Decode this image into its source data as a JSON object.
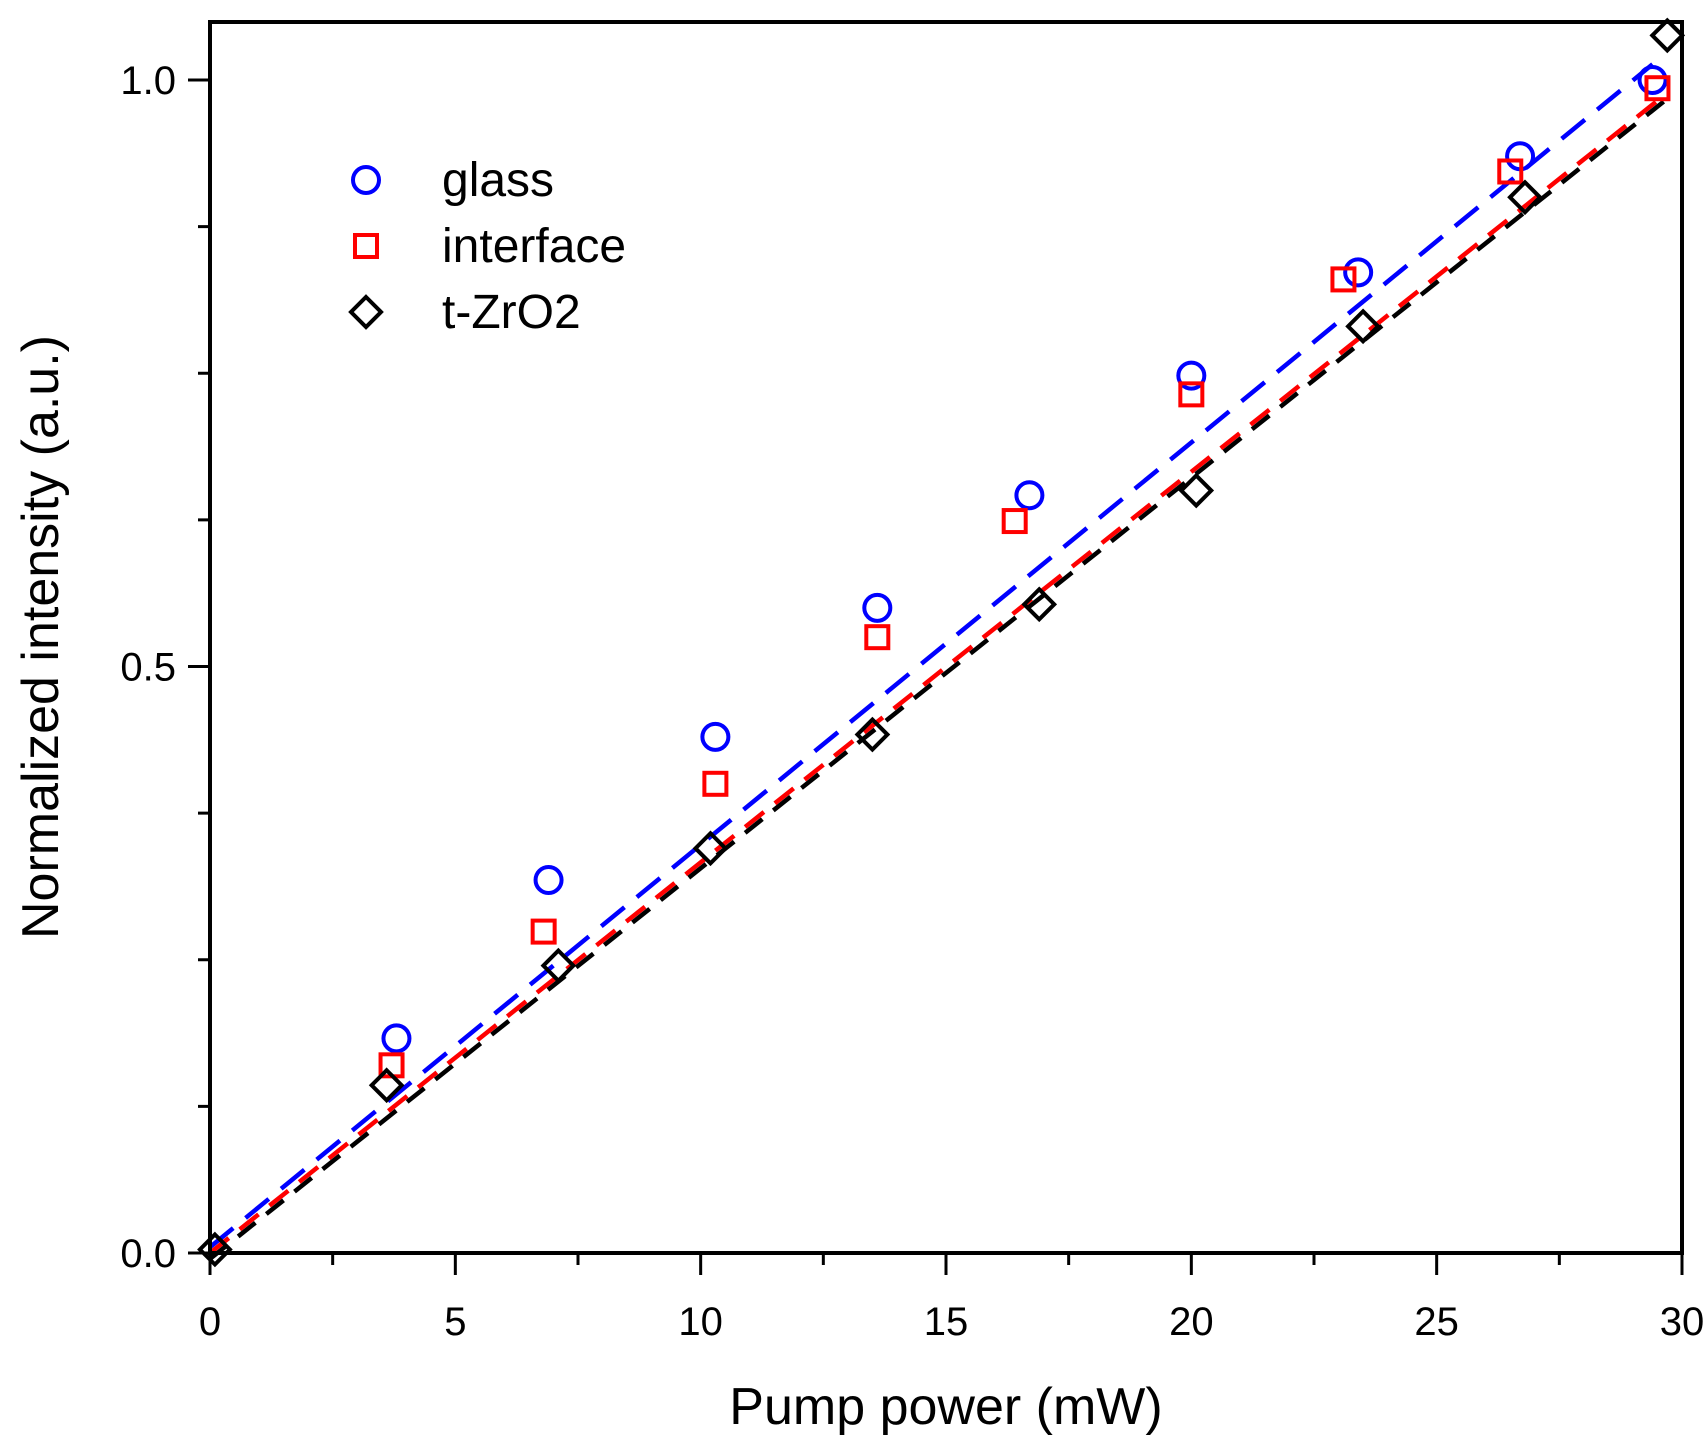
{
  "chart_data": {
    "type": "scatter",
    "title": "",
    "xlabel": "Pump power (mW)",
    "ylabel": "Normalized intensity (a.u.)",
    "xlim": [
      0,
      30
    ],
    "ylim": [
      0,
      1.05
    ],
    "x_ticks": [
      "0",
      "5",
      "10",
      "15",
      "20",
      "25",
      "30"
    ],
    "y_ticks": [
      "0.0",
      "0.5",
      "1.0"
    ],
    "grid": false,
    "legend_position": "top-left",
    "series": [
      {
        "name": "glass",
        "marker": "circle",
        "color": "#0000ff",
        "fit_slope": 0.0343,
        "fit_intercept": 0.005,
        "points": [
          {
            "x": 3.8,
            "y": 0.183
          },
          {
            "x": 6.9,
            "y": 0.318
          },
          {
            "x": 10.3,
            "y": 0.44
          },
          {
            "x": 13.6,
            "y": 0.55
          },
          {
            "x": 16.7,
            "y": 0.646
          },
          {
            "x": 20.0,
            "y": 0.748
          },
          {
            "x": 23.4,
            "y": 0.836
          },
          {
            "x": 26.7,
            "y": 0.935
          },
          {
            "x": 29.4,
            "y": 1.0
          }
        ]
      },
      {
        "name": "interface",
        "marker": "square",
        "color": "#ff0000",
        "fit_slope": 0.0333,
        "fit_intercept": 0.0,
        "points": [
          {
            "x": 3.7,
            "y": 0.16
          },
          {
            "x": 6.8,
            "y": 0.274
          },
          {
            "x": 10.3,
            "y": 0.4
          },
          {
            "x": 13.6,
            "y": 0.525
          },
          {
            "x": 16.4,
            "y": 0.624
          },
          {
            "x": 20.0,
            "y": 0.732
          },
          {
            "x": 23.1,
            "y": 0.83
          },
          {
            "x": 26.5,
            "y": 0.922
          },
          {
            "x": 29.5,
            "y": 0.993
          }
        ]
      },
      {
        "name": "t-ZrO2",
        "marker": "diamond",
        "color": "#000000",
        "fit_slope": 0.0333,
        "fit_intercept": -0.005,
        "points": [
          {
            "x": 0.1,
            "y": 0.003
          },
          {
            "x": 3.6,
            "y": 0.143
          },
          {
            "x": 7.1,
            "y": 0.245
          },
          {
            "x": 10.2,
            "y": 0.345
          },
          {
            "x": 13.5,
            "y": 0.442
          },
          {
            "x": 16.9,
            "y": 0.553
          },
          {
            "x": 20.1,
            "y": 0.65
          },
          {
            "x": 23.5,
            "y": 0.79
          },
          {
            "x": 26.8,
            "y": 0.9
          },
          {
            "x": 29.7,
            "y": 1.038
          }
        ]
      }
    ]
  }
}
